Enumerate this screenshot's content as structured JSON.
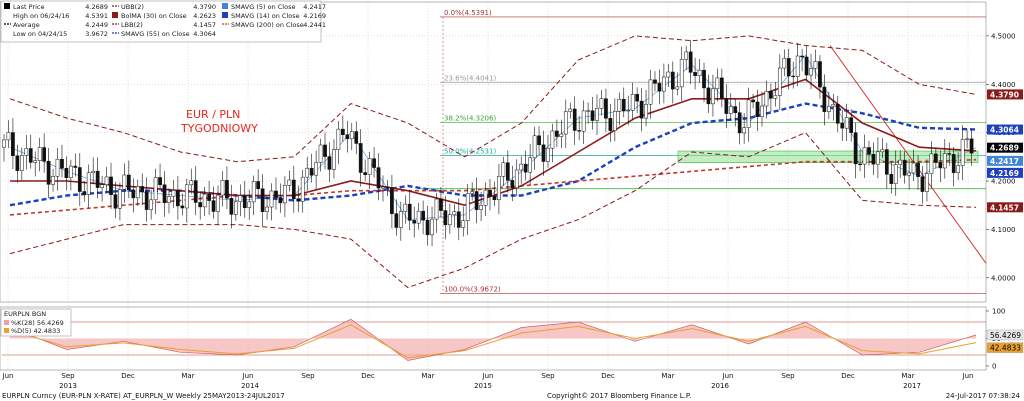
{
  "legend_main": {
    "rows": [
      {
        "label": "Last Price",
        "value": "4.2689",
        "color": "#000000",
        "mark": "box"
      },
      {
        "label": "High on 06/24/16",
        "value": "4.5391",
        "color": "#000000",
        "mark": "none"
      },
      {
        "label": "Average",
        "value": "4.2449",
        "color": "#000000",
        "mark": "dash"
      },
      {
        "label": "Low on 04/24/15",
        "value": "3.9672",
        "color": "#000000",
        "mark": "none"
      },
      {
        "label": "UBB(2)",
        "value": "4.3790",
        "color": "#8b1a1a",
        "mark": "dash"
      },
      {
        "label": "BolMA (30) on Close",
        "value": "4.2623",
        "color": "#8b1a1a",
        "mark": "box"
      },
      {
        "label": "LBB(2)",
        "value": "4.1457",
        "color": "#8b1a1a",
        "mark": "dash"
      },
      {
        "label": "SMAVG (55) on Close",
        "value": "4.3064",
        "color": "#1e3fbf",
        "mark": "dash"
      },
      {
        "label": "SMAVG (5) on Close",
        "value": "4.2417",
        "color": "#3f86d6",
        "mark": "box"
      },
      {
        "label": "SMAVG (14) on Close",
        "value": "4.2169",
        "color": "#1e3fbf",
        "mark": "box"
      },
      {
        "label": "SMAVG (200) on Close",
        "value": "4.2441",
        "color": "#c0392b",
        "mark": "dash"
      }
    ]
  },
  "annotation": {
    "line1": "EUR / PLN",
    "line2": "TYGODNIOWY",
    "color": "#e8261c"
  },
  "fib_labels": [
    "0.0%(4.5391)",
    "23.6%(4.4041)",
    "38.2%(4.3206)",
    "50.0%(4.2531)",
    "100.0%(3.9672)"
  ],
  "right_tags": [
    {
      "text": "4.3790",
      "bg": "#8b1a1a",
      "fg": "#ffffff"
    },
    {
      "text": "4.3064",
      "bg": "#1e3fbf",
      "fg": "#ffffff"
    },
    {
      "text": "4.2689",
      "bg": "#000000",
      "fg": "#ffffff"
    },
    {
      "text": "4.2417",
      "bg": "#3f86d6",
      "fg": "#ffffff"
    },
    {
      "text": "4.2169",
      "bg": "#1e3fbf",
      "fg": "#ffffff"
    },
    {
      "text": "4.1457",
      "bg": "#8b1a1a",
      "fg": "#ffffff"
    }
  ],
  "price_axis_ticks": [
    "4.5000",
    "4.4000",
    "4.3000",
    "4.2000",
    "4.1000",
    "4.0000"
  ],
  "osc_legend": {
    "title": "EURPLN BGN",
    "rows": [
      {
        "label": "%K(28)",
        "value": "56.4269",
        "color": "#f2a0a0"
      },
      {
        "label": "%D(5)",
        "value": "42.4833",
        "color": "#e8a030"
      }
    ]
  },
  "osc_axis_ticks": [
    "100",
    "50",
    "0"
  ],
  "osc_tags": [
    {
      "text": "56.4269",
      "bg": "#e8e8e8",
      "fg": "#000000"
    },
    {
      "text": "42.4833",
      "bg": "#e8a030",
      "fg": "#000000"
    }
  ],
  "time_axis": {
    "months": [
      "Jun",
      "Sep",
      "Dec",
      "Mar",
      "Jun",
      "Sep",
      "Dec",
      "Mar",
      "Jun",
      "Sep",
      "Dec",
      "Mar",
      "Jun",
      "Sep",
      "Dec",
      "Mar",
      "Jun"
    ],
    "years": [
      "2013",
      "2014",
      "2015",
      "2016",
      "2017"
    ]
  },
  "footer": {
    "left": "EURPLN Curncy (EUR-PLN X-RATE) AT_EURPLN_W  Weekly 25MAY2013-24JUL2017",
    "center": "Copyright© 2017 Bloomberg Finance L.P.",
    "right": "24-Jul-2017 07:38:24"
  },
  "chart_data": [
    {
      "type": "line",
      "subtype": "candlestick-weekly",
      "title": "",
      "period": "25MAY2013-24JUL2017",
      "y_range": [
        3.95,
        4.57
      ],
      "last_price": 4.2689,
      "high": {
        "date": "06/24/16",
        "value": 4.5391
      },
      "low": {
        "date": "04/24/15",
        "value": 3.9672
      },
      "average": 4.2449,
      "fibonacci_levels": [
        {
          "label": "0.0%",
          "value": 4.5391
        },
        {
          "label": "23.6%",
          "value": 4.4041
        },
        {
          "label": "38.2%",
          "value": 4.3206
        },
        {
          "label": "50.0%",
          "value": 4.2531
        },
        {
          "label": "100.0%",
          "value": 3.9672
        }
      ],
      "indicator_last_values": {
        "UBB(2)": 4.379,
        "BolMA (30)": 4.2623,
        "LBB(2)": 4.1457,
        "SMAVG (5)": 4.2417,
        "SMAVG (14)": 4.2169,
        "SMAVG (55)": 4.3064,
        "SMAVG (200)": 4.2441
      },
      "x": [
        "2013-06",
        "2013-09",
        "2013-12",
        "2014-03",
        "2014-06",
        "2014-09",
        "2014-12",
        "2015-03",
        "2015-06",
        "2015-09",
        "2015-12",
        "2016-03",
        "2016-06",
        "2016-09",
        "2016-12",
        "2017-03",
        "2017-06",
        "2017-07"
      ],
      "series": [
        {
          "name": "Last Price",
          "values": [
            4.27,
            4.22,
            4.18,
            4.17,
            4.16,
            4.17,
            4.3,
            4.12,
            4.13,
            4.22,
            4.33,
            4.35,
            4.44,
            4.32,
            4.46,
            4.26,
            4.21,
            4.2689
          ]
        },
        {
          "name": "SMAVG (55) on Close",
          "values": [
            4.15,
            4.17,
            4.18,
            4.18,
            4.17,
            4.16,
            4.17,
            4.19,
            4.17,
            4.17,
            4.2,
            4.27,
            4.32,
            4.33,
            4.36,
            4.34,
            4.31,
            4.3064
          ]
        },
        {
          "name": "SMAVG (200) on Close",
          "values": [
            4.13,
            4.14,
            4.15,
            4.16,
            4.17,
            4.17,
            4.18,
            4.18,
            4.18,
            4.19,
            4.2,
            4.21,
            4.22,
            4.23,
            4.24,
            4.24,
            4.24,
            4.2441
          ]
        },
        {
          "name": "BolMA (30) on Close",
          "values": [
            4.2,
            4.2,
            4.19,
            4.18,
            4.17,
            4.17,
            4.2,
            4.18,
            4.15,
            4.19,
            4.26,
            4.33,
            4.37,
            4.37,
            4.41,
            4.32,
            4.27,
            4.2623
          ]
        },
        {
          "name": "UBB(2)",
          "values": [
            4.37,
            4.33,
            4.3,
            4.26,
            4.24,
            4.25,
            4.36,
            4.32,
            4.25,
            4.32,
            4.45,
            4.5,
            4.49,
            4.5,
            4.48,
            4.47,
            4.4,
            4.379
          ]
        },
        {
          "name": "LBB(2)",
          "values": [
            4.05,
            4.08,
            4.11,
            4.11,
            4.11,
            4.1,
            4.08,
            3.98,
            4.02,
            4.08,
            4.12,
            4.18,
            4.26,
            4.25,
            4.3,
            4.16,
            4.15,
            4.1457
          ]
        }
      ]
    },
    {
      "type": "line",
      "title": "EURPLN BGN",
      "y_range": [
        0,
        100
      ],
      "x": [
        "2013-06",
        "2013-09",
        "2013-12",
        "2014-03",
        "2014-06",
        "2014-09",
        "2014-12",
        "2015-03",
        "2015-06",
        "2015-09",
        "2015-12",
        "2016-03",
        "2016-06",
        "2016-09",
        "2016-12",
        "2017-03",
        "2017-06",
        "2017-07"
      ],
      "series": [
        {
          "name": "%K(28)",
          "values": [
            70,
            30,
            45,
            25,
            20,
            35,
            85,
            10,
            30,
            70,
            80,
            45,
            75,
            40,
            80,
            20,
            25,
            56.4269
          ]
        },
        {
          "name": "%D(5)",
          "values": [
            65,
            35,
            42,
            30,
            22,
            32,
            75,
            15,
            28,
            60,
            72,
            50,
            68,
            45,
            72,
            28,
            22,
            42.4833
          ]
        }
      ]
    }
  ]
}
